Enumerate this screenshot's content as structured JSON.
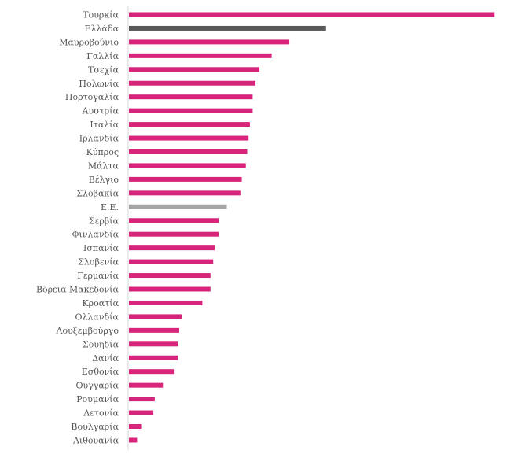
{
  "chart_data": {
    "type": "bar",
    "orientation": "horizontal",
    "title": "",
    "xlabel": "",
    "ylabel": "",
    "grid": false,
    "legend": "none",
    "xlim": [
      0,
      27
    ],
    "categories": [
      "Τουρκία",
      "Ελλάδα",
      "Μαυροβούνιο",
      "Γαλλία",
      "Τσεχία",
      "Πολωνία",
      "Πορτογαλία",
      "Αυστρία",
      "Ιταλία",
      "Ιρλανδία",
      "Κύπρος",
      "Μάλτα",
      "Βέλγιο",
      "Σλοβακία",
      "Ε.Ε.",
      "Σερβία",
      "Φινλανδία",
      "Ισπανία",
      "Σλοβενία",
      "Γερμανία",
      "Βόρεια Μακεδονία",
      "Κροατία",
      "Ολλανδία",
      "Λουξεμβούργο",
      "Σουηδία",
      "Δανία",
      "Εσθονία",
      "Ουγγαρία",
      "Ρουμανία",
      "Λετονία",
      "Βουλγαρία",
      "Λιθουανία"
    ],
    "values": [
      26.9,
      14.5,
      11.8,
      10.5,
      9.6,
      9.3,
      9.1,
      9.1,
      8.9,
      8.8,
      8.7,
      8.6,
      8.3,
      8.2,
      7.2,
      6.6,
      6.6,
      6.3,
      6.2,
      6.0,
      6.0,
      5.4,
      3.9,
      3.7,
      3.6,
      3.6,
      3.3,
      2.5,
      1.9,
      1.8,
      0.9,
      0.6
    ],
    "colors": {
      "default": "#d6257a",
      "highlight": "#595959",
      "eu": "#a6a6a6"
    },
    "highlight_category": "Ελλάδα",
    "eu_category": "Ε.Ε."
  }
}
